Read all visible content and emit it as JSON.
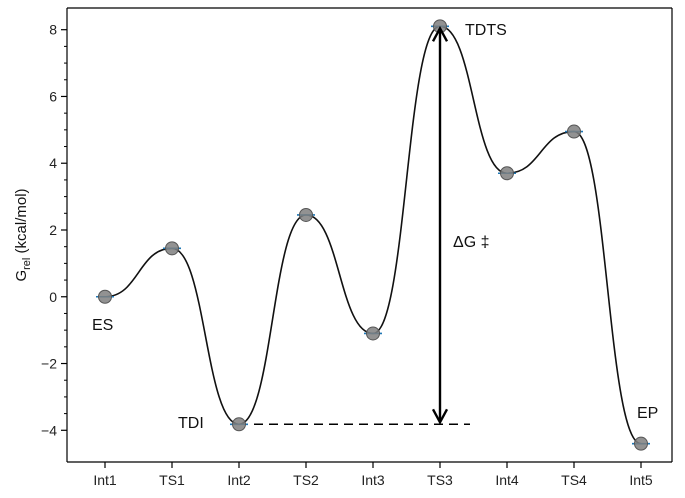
{
  "chart_data": {
    "type": "line",
    "categories": [
      "Int1",
      "TS1",
      "Int2",
      "TS2",
      "Int3",
      "TS3",
      "Int4",
      "TS4",
      "Int5"
    ],
    "values": [
      0.0,
      1.45,
      -3.82,
      2.45,
      -1.1,
      8.1,
      3.7,
      4.95,
      -4.4
    ],
    "ylabel_main": "G",
    "ylabel_sub": "rel",
    "ylabel_unit": " (kcal/mol)",
    "ylim": [
      -4.95,
      8.65
    ],
    "yticks": [
      -4,
      -2,
      0,
      2,
      4,
      6,
      8
    ],
    "ytick_labels": [
      "−4",
      "−2",
      "0",
      "2",
      "4",
      "6",
      "8"
    ],
    "grid": false,
    "annotations": {
      "es": "ES",
      "tdi": "TDI",
      "tdts": "TDTS",
      "ep": "EP",
      "delta_g": "ΔG ‡"
    },
    "colors": {
      "curve": "#111111",
      "marker": "#7f7f7f",
      "marker_edge": "#555555",
      "level_line": "#1f77b4",
      "arrow": "#000000"
    }
  }
}
